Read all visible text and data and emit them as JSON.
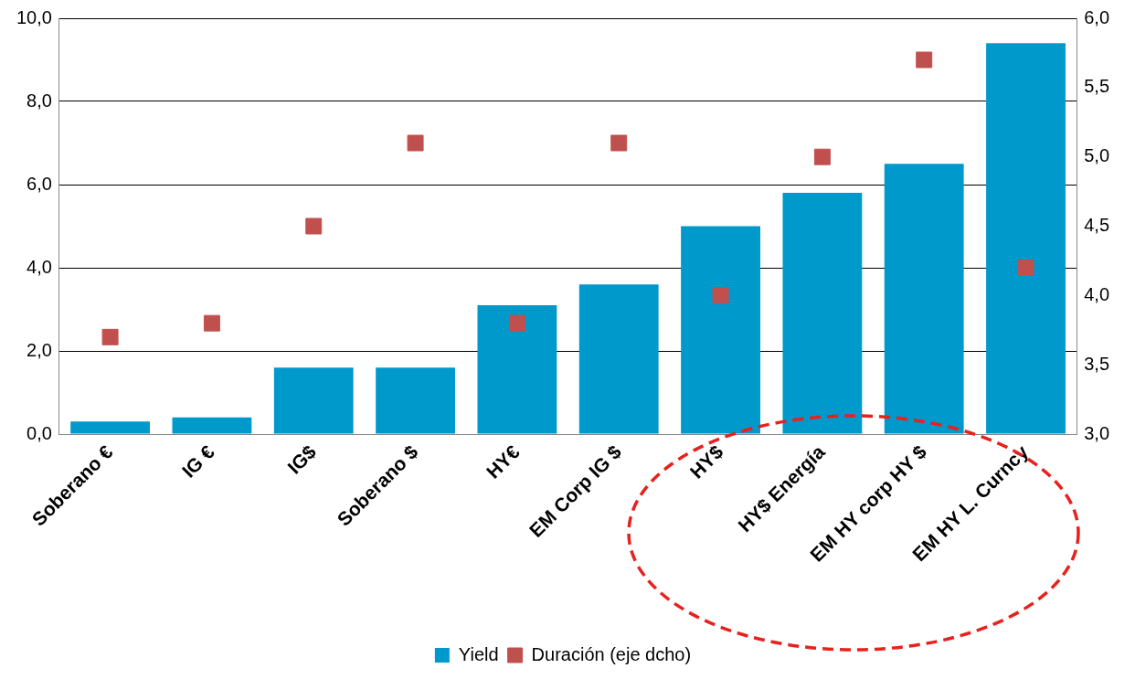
{
  "chart_data": {
    "type": "bar",
    "categories": [
      "Soberano €",
      "IG €",
      "IG$",
      "Soberano $",
      "HY€",
      "EM Corp IG $",
      "HY$",
      "HY$ Energía",
      "EM HY corp HY $",
      "EM HY L. Curncy"
    ],
    "series": [
      {
        "name": "Yield",
        "color": "#0099cc",
        "values": [
          0.3,
          0.4,
          1.6,
          1.6,
          3.1,
          3.6,
          5.0,
          5.8,
          6.5,
          9.4
        ]
      },
      {
        "name": "Duración (eje dcho)",
        "type": "scatter",
        "axis": "y2",
        "color": "#c0504d",
        "values": [
          3.7,
          3.8,
          4.5,
          5.1,
          3.8,
          5.1,
          4.0,
          5.0,
          5.7,
          4.2
        ]
      }
    ],
    "ylim": [
      0,
      10
    ],
    "yticks": [
      {
        "value": 0,
        "label": "0,0"
      },
      {
        "value": 2,
        "label": "2,0"
      },
      {
        "value": 4,
        "label": "4,0"
      },
      {
        "value": 6,
        "label": "6,0"
      },
      {
        "value": 8,
        "label": "8,0"
      },
      {
        "value": 10,
        "label": "10,0"
      }
    ],
    "y2lim": [
      3,
      6
    ],
    "y2ticks": [
      {
        "value": 3,
        "label": "3,0"
      },
      {
        "value": 3.5,
        "label": "3,5"
      },
      {
        "value": 4,
        "label": "4,0"
      },
      {
        "value": 4.5,
        "label": "4,5"
      },
      {
        "value": 5,
        "label": "5,0"
      },
      {
        "value": 5.5,
        "label": "5,5"
      },
      {
        "value": 6,
        "label": "6,0"
      }
    ],
    "grid": "y",
    "legend": "bottom",
    "marker": "square"
  }
}
